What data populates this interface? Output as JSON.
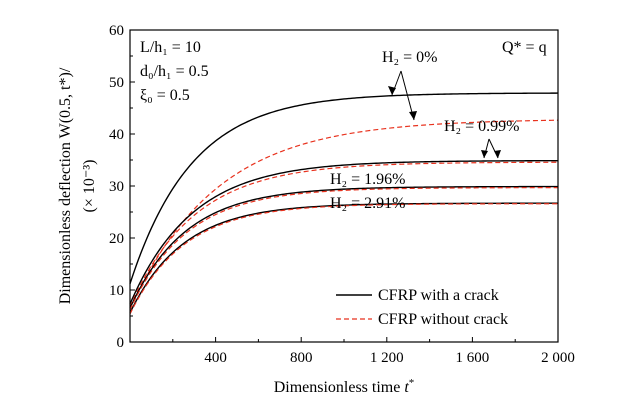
{
  "chart_data": {
    "type": "line",
    "xlabel_main": "Dimensionless time ",
    "xlabel_var": "t",
    "xlabel_sup": "*",
    "ylabel_line1": "Dimensionless deflection W(0.5, t*)/",
    "ylabel_line2": "(× 10⁻³)",
    "xlim": [
      0,
      2000
    ],
    "ylim": [
      0,
      60
    ],
    "x_ticks": [
      400,
      800,
      1200,
      1600,
      2000
    ],
    "x_tick_labels": [
      "400",
      "800",
      "1 200",
      "1 600",
      "2 000"
    ],
    "y_ticks": [
      0,
      10,
      20,
      30,
      40,
      50,
      60
    ],
    "y_tick_labels": [
      "0",
      "10",
      "20",
      "30",
      "40",
      "50",
      "60"
    ],
    "grid": false,
    "legend_position": "bottom-right",
    "legend": [
      {
        "label": "CFRP with a crack",
        "style": "solid",
        "color": "#000000"
      },
      {
        "label": "CFRP without crack",
        "style": "dashed",
        "color": "#e8321e"
      }
    ],
    "params": {
      "line1": "L/h₁ = 10",
      "line2": "d₀/h₁ = 0.5",
      "line3": "ξ₀ = 0.5",
      "load": "Q* = q"
    },
    "annotations": [
      {
        "text": "H₂ = 0%"
      },
      {
        "text": "H₂ = 0.99%"
      },
      {
        "text": "H₂ = 1.96%"
      },
      {
        "text": "H₂ = 2.91%"
      }
    ],
    "series": [
      {
        "name": "CFRP with a crack",
        "case": "H₂ = 0%",
        "style": "solid",
        "y0": 11.2,
        "ymax": 47.9,
        "tau": 290
      },
      {
        "name": "CFRP without crack",
        "case": "H₂ = 0%",
        "style": "dashed",
        "y0": 6.2,
        "ymax": 42.9,
        "tau": 400
      },
      {
        "name": "CFRP with a crack",
        "case": "H₂ = 0.99%",
        "style": "solid",
        "y0": 7.3,
        "ymax": 34.9,
        "tau": 290
      },
      {
        "name": "CFRP without crack",
        "case": "H₂ = 0.99%",
        "style": "dashed",
        "y0": 6.8,
        "ymax": 34.6,
        "tau": 300
      },
      {
        "name": "CFRP with a crack",
        "case": "H₂ = 1.96%",
        "style": "solid",
        "y0": 6.5,
        "ymax": 29.9,
        "tau": 260
      },
      {
        "name": "CFRP without crack",
        "case": "H₂ = 1.96%",
        "style": "dashed",
        "y0": 6.2,
        "ymax": 29.7,
        "tau": 265
      },
      {
        "name": "CFRP with a crack",
        "case": "H₂ = 2.91%",
        "style": "solid",
        "y0": 5.6,
        "ymax": 26.7,
        "tau": 250
      },
      {
        "name": "CFRP without crack",
        "case": "H₂ = 2.91%",
        "style": "dashed",
        "y0": 5.4,
        "ymax": 26.6,
        "tau": 255
      }
    ]
  }
}
